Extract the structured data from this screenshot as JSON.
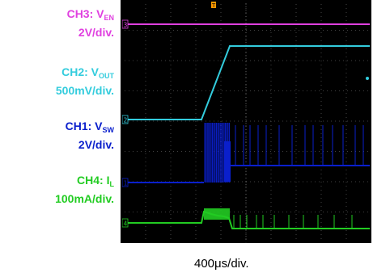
{
  "channels": [
    {
      "id": "ch3",
      "name": "CH3: V",
      "sub": "EN",
      "scale": "2V/div.",
      "color": "#e040e0"
    },
    {
      "id": "ch2",
      "name": "CH2: V",
      "sub": "OUT",
      "scale": "500mV/div.",
      "color": "#33ccdd"
    },
    {
      "id": "ch1",
      "name": "CH1: V",
      "sub": "SW",
      "scale": "2V/div.",
      "color": "#0a1fcc"
    },
    {
      "id": "ch4",
      "name": "CH4: I",
      "sub": "L",
      "scale": "100mA/div.",
      "color": "#22cc22"
    }
  ],
  "markers": [
    "3",
    "2",
    "1",
    "4"
  ],
  "trigger_marker": "T",
  "time_scale": "400μs/div.",
  "chart_data": {
    "type": "line",
    "x_divisions": 10,
    "grid": true,
    "background": "#000000",
    "series": [
      {
        "name": "CH3: VEN",
        "description": "constant high level"
      },
      {
        "name": "CH2: VOUT",
        "description": "flat, then linear ramp up, then flat at regulated level"
      },
      {
        "name": "CH1: VSW",
        "description": "low, dense switching burst, then high with sparse pulses"
      },
      {
        "name": "CH4: IL",
        "description": "near zero, inrush spike during burst, then small ripple"
      }
    ]
  }
}
